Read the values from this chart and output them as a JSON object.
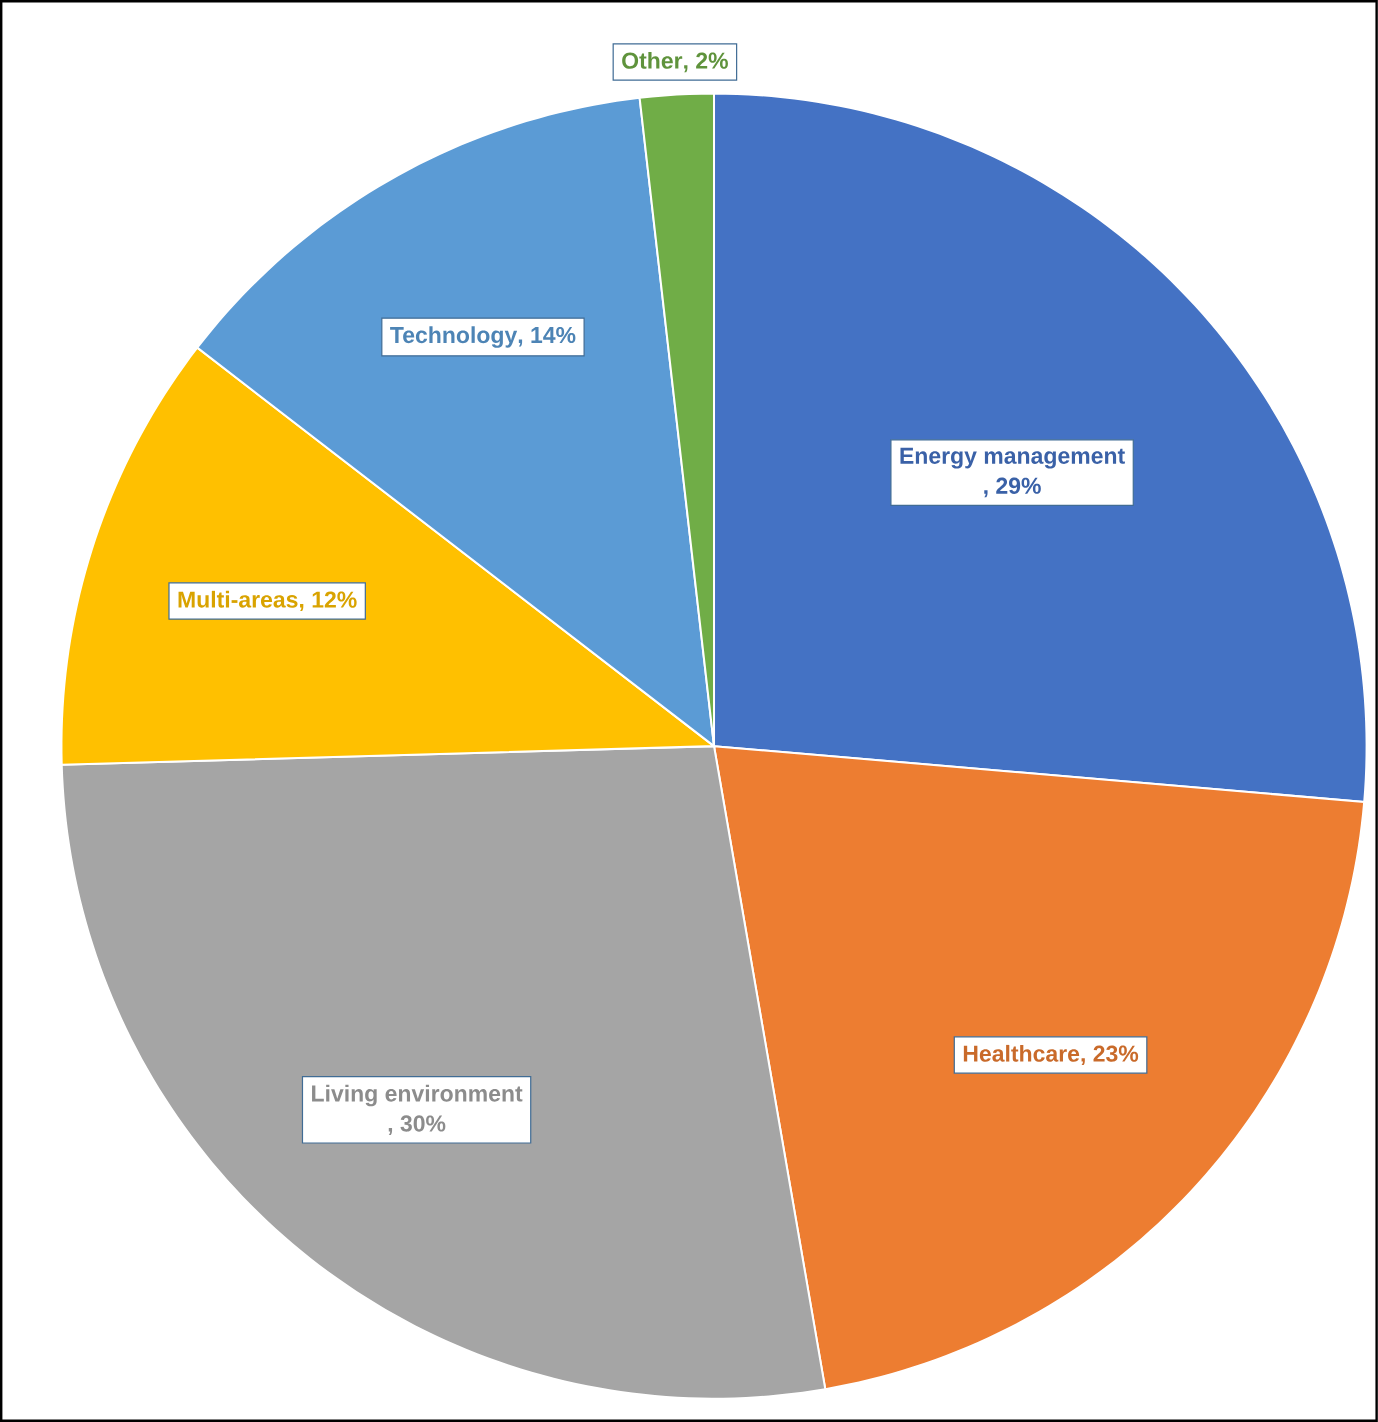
{
  "chart_data": {
    "type": "pie",
    "categories": [
      "Energy management",
      "Healthcare",
      "Living environment",
      "Multi-areas",
      "Technology",
      "Other"
    ],
    "values": [
      29,
      23,
      30,
      12,
      14,
      2
    ],
    "value_labels": [
      ", 29%",
      ", 23%",
      ", 30%",
      ", 12%",
      ", 14%",
      ", 2%"
    ],
    "colors": [
      "#4472c4",
      "#ed7d31",
      "#a5a5a5",
      "#ffc000",
      "#5b9bd5",
      "#70ad47"
    ]
  }
}
